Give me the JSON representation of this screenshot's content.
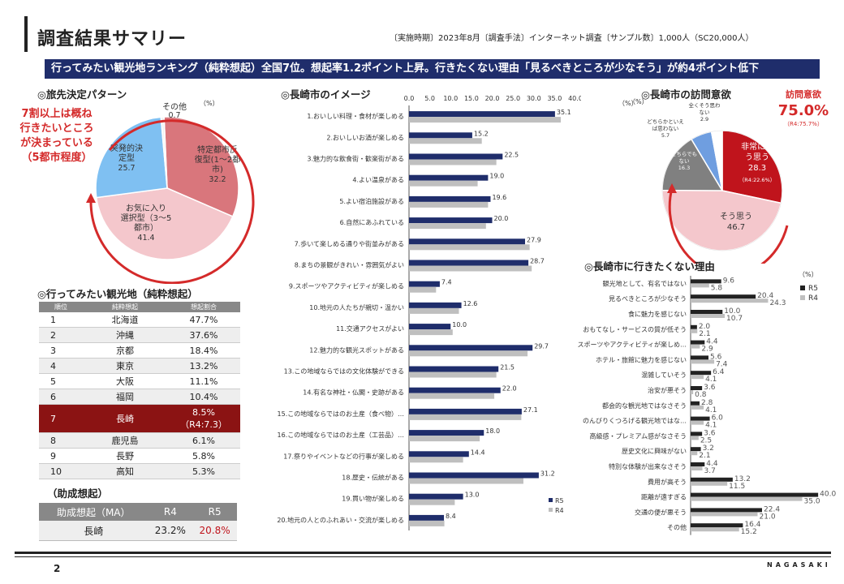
{
  "header": {
    "title": "調査結果サマリー",
    "survey_info": "〔実施時期〕2023年8月〔調査手法〕インターネット調査〔サンプル数〕1,000人（SC20,000人）",
    "banner": "行ってみたい観光地ランキング（純粋想起）全国7位。想起率1.2ポイント上昇。行きたくない理由「見るべきところが少なそう」が約4ポイント低下"
  },
  "pattern": {
    "title": "◎旅先決定パターン",
    "unit": "（%）",
    "callout": [
      "7割以上は概ね",
      "行きたいところ",
      "が決まっている",
      "（5都市程度）"
    ],
    "slices": [
      {
        "label": [
          "特定都市反",
          "復型(1～2都",
          "市)"
        ],
        "value": 32.2,
        "value_label": "32.2",
        "color": "#d9767c"
      },
      {
        "label": [
          "お気に入り",
          "選択型（3～5",
          "都市）"
        ],
        "value": 41.4,
        "value_label": "41.4",
        "color": "#f4c7cc"
      },
      {
        "label": [
          "突発的決",
          "定型"
        ],
        "value": 25.7,
        "value_label": "25.7",
        "color": "#7fc0f2"
      },
      {
        "label": [
          "その他"
        ],
        "value": 0.7,
        "value_label": "0.7",
        "color": "#f2f2f2"
      }
    ]
  },
  "ranking": {
    "title": "◎行ってみたい観光地（純粋想起）",
    "headers": [
      "順位",
      "純粋想起",
      "想起割合"
    ],
    "rows": [
      {
        "rank": "1",
        "name": "北海道",
        "value": "47.7%"
      },
      {
        "rank": "2",
        "name": "沖縄",
        "value": "37.6%"
      },
      {
        "rank": "3",
        "name": "京都",
        "value": "18.4%"
      },
      {
        "rank": "4",
        "name": "東京",
        "value": "13.2%"
      },
      {
        "rank": "5",
        "name": "大阪",
        "value": "11.1%"
      },
      {
        "rank": "6",
        "name": "福岡",
        "value": "10.4%"
      },
      {
        "rank": "7",
        "name": "長崎",
        "value": "8.5%",
        "sub": "（R4:7.3）"
      },
      {
        "rank": "8",
        "name": "鹿児島",
        "value": "6.1%"
      },
      {
        "rank": "9",
        "name": "長野",
        "value": "5.8%"
      },
      {
        "rank": "10",
        "name": "高知",
        "value": "5.3%"
      }
    ]
  },
  "aided": {
    "title": "（助成想起）",
    "headers": [
      "助成想起（MA）",
      "R4",
      "R5"
    ],
    "row": {
      "name": "長崎",
      "r4": "23.2%",
      "r5": "20.8%"
    }
  },
  "image_chart": {
    "title": "◎長崎市のイメージ",
    "unit": "（%）"
  },
  "visit": {
    "title": "◎長崎市の訪問意欲",
    "highlight_label": "訪問意欲",
    "highlight_value": "75.0%",
    "highlight_sub": "（R4:75.7%）",
    "unit": "（%）",
    "slices": [
      {
        "label": [
          "非常にそ",
          "う思う"
        ],
        "value": 28.3,
        "value_label": "28.3",
        "sub": "（R4:22.6%）",
        "color": "#c0141c"
      },
      {
        "label": [
          "そう思う"
        ],
        "value": 46.7,
        "value_label": "46.7",
        "color": "#f4c7cc"
      },
      {
        "label": [
          "どちらでも",
          "ない"
        ],
        "value": 16.3,
        "value_label": "16.3",
        "color": "#808080"
      },
      {
        "label": [
          "どちらかといえ",
          "ば思わない"
        ],
        "value": 5.7,
        "value_label": "5.7",
        "color": "#6f9ee0"
      },
      {
        "label": [
          "全くそう思わ",
          "ない"
        ],
        "value": 2.9,
        "value_label": "2.9",
        "color": "#ffffff"
      }
    ]
  },
  "reasons_chart": {
    "title": "◎長崎市に行きたくない理由",
    "unit": "（%）"
  },
  "chart_data": [
    {
      "type": "bar",
      "orientation": "horizontal",
      "title": "◎長崎市のイメージ",
      "xlim": [
        0,
        40
      ],
      "ticks": [
        "0.0",
        "5.0",
        "10.0",
        "15.0",
        "20.0",
        "25.0",
        "30.0",
        "35.0",
        "40.0"
      ],
      "legend_position": "bottom-right",
      "categories": [
        "1.おいしい料理・食材が楽しめる",
        "2.おいしいお酒が楽しめる",
        "3.魅力的な飲食街・歓楽街がある",
        "4.よい温泉がある",
        "5.よい宿泊施設がある",
        "6.自然にあふれている",
        "7.歩いて楽しめる通りや街並みがある",
        "8.まちの景観がきれい・雰囲気がよい",
        "9.スポーツやアクティビティが楽しめる",
        "10.地元の人たちが親切・温かい",
        "11.交通アクセスがよい",
        "12.魅力的な観光スポットがある",
        "13.この地域ならではの文化体験ができる",
        "14.有名な神社・仏閣・史跡がある",
        "15.この地域ならではのお土産（食べ物）…",
        "16.この地域ならではのお土産（工芸品）…",
        "17.祭りやイベントなどの行事が楽しめる",
        "18.歴史・伝統がある",
        "19.買い物が楽しめる",
        "20.地元の人とのふれあい・交流が楽しめる"
      ],
      "series": [
        {
          "name": "R5",
          "color": "#1f2d6b",
          "values": [
            35.1,
            15.2,
            22.5,
            19.0,
            19.6,
            20.0,
            27.9,
            28.7,
            7.4,
            12.6,
            10.0,
            29.7,
            21.5,
            22.0,
            27.1,
            18.0,
            14.4,
            31.2,
            13.0,
            8.4
          ],
          "labels": [
            "35.1",
            "15.2",
            "22.5",
            "19.0",
            "19.6",
            "20.0",
            "27.9",
            "28.7",
            "7.4",
            "12.6",
            "10.0",
            "29.7",
            "21.5",
            "22.0",
            "27.1",
            "18.0",
            "14.4",
            "31.2",
            "13.0",
            "8.4"
          ]
        },
        {
          "name": "R4",
          "color": "#bfbfbf",
          "values": [
            36.5,
            17.5,
            21.0,
            16.5,
            19.0,
            18.5,
            29.0,
            29.5,
            6.5,
            12.0,
            10.5,
            28.5,
            21.0,
            20.5,
            27.0,
            17.0,
            13.0,
            27.5,
            11.0,
            8.5
          ]
        }
      ]
    },
    {
      "type": "bar",
      "orientation": "horizontal",
      "title": "◎長崎市に行きたくない理由",
      "xlim": [
        0,
        42
      ],
      "legend_position": "top-right",
      "categories": [
        "観光地として、有名ではない",
        "見るべきところが少なそう",
        "食に魅力を感じない",
        "おもてなし・サービスの質が低そう",
        "スポーツやアクティビティが楽しめ…",
        "ホテル・旅館に魅力を感じない",
        "混雑していそう",
        "治安が悪そう",
        "都会的な観光地ではなさそう",
        "のんびりくつろげる観光地ではな…",
        "高級感・プレミアム感がなさそう",
        "歴史文化に興味がない",
        "特別な体験が出来なさそう",
        "費用が高そう",
        "距離が遠すぎる",
        "交通の便が悪そう",
        "その他"
      ],
      "series": [
        {
          "name": "R5",
          "color": "#222222",
          "values": [
            9.6,
            20.4,
            10.0,
            2.0,
            4.4,
            5.6,
            6.4,
            3.6,
            2.8,
            6.0,
            3.6,
            3.2,
            4.4,
            13.2,
            40.0,
            22.4,
            16.4
          ],
          "labels": [
            "9.6",
            "20.4",
            "10.0",
            "2.0",
            "4.4",
            "5.6",
            "6.4",
            "3.6",
            "2.8",
            "6.0",
            "3.6",
            "3.2",
            "4.4",
            "13.2",
            "40.0",
            "22.4",
            "16.4"
          ]
        },
        {
          "name": "R4",
          "color": "#bfbfbf",
          "values": [
            5.8,
            24.3,
            10.7,
            2.1,
            2.9,
            7.4,
            4.1,
            0.8,
            4.1,
            4.1,
            2.5,
            2.1,
            3.7,
            11.5,
            35.0,
            21.0,
            15.2
          ],
          "labels": [
            "5.8",
            "24.3",
            "10.7",
            "2.1",
            "2.9",
            "7.4",
            "4.1",
            "0.8",
            "4.1",
            "4.1",
            "2.5",
            "2.1",
            "3.7",
            "11.5",
            "35.0",
            "21.0",
            "15.2"
          ]
        }
      ]
    }
  ],
  "footer": {
    "page": "2",
    "brand": "NAGASAKI"
  }
}
